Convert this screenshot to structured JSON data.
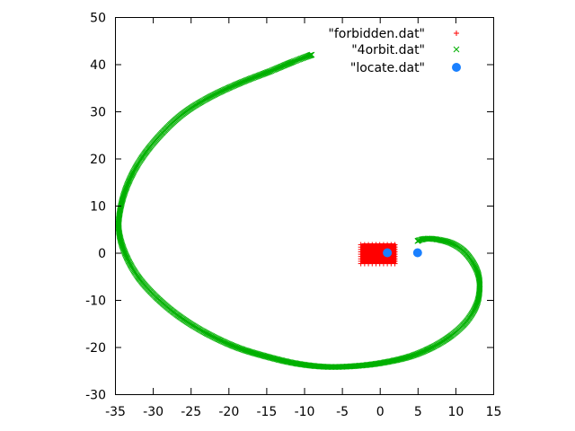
{
  "chart_data": {
    "type": "scatter",
    "title": "",
    "xlabel": "",
    "ylabel": "",
    "xlim": [
      -35,
      15
    ],
    "ylim": [
      -30,
      50
    ],
    "xticks": [
      "-35",
      "-30",
      "-25",
      "-20",
      "-15",
      "-10",
      "-5",
      "0",
      "5",
      "10",
      "15"
    ],
    "yticks": [
      "-30",
      "-20",
      "-10",
      "0",
      "10",
      "20",
      "30",
      "40",
      "50"
    ],
    "grid": false,
    "legend_position": "top-right",
    "series": [
      {
        "name": "\"forbidden.dat\"",
        "marker": "plus",
        "color": "#ff0000",
        "region": {
          "x": [
            -2.5,
            2.2
          ],
          "y": [
            -2.3,
            2.0
          ]
        }
      },
      {
        "name": "\"4orbit.dat\"",
        "marker": "cross",
        "color": "#00b000",
        "points": [
          [
            5.0,
            2.5
          ],
          [
            5.5,
            2.8
          ],
          [
            6.5,
            3.0
          ],
          [
            8.0,
            2.7
          ],
          [
            9.5,
            2.0
          ],
          [
            11.0,
            0.5
          ],
          [
            12.2,
            -1.8
          ],
          [
            13.0,
            -4.5
          ],
          [
            13.2,
            -7.5
          ],
          [
            12.8,
            -11.0
          ],
          [
            11.5,
            -14.5
          ],
          [
            9.5,
            -17.5
          ],
          [
            7.0,
            -20.0
          ],
          [
            4.0,
            -22.0
          ],
          [
            0.5,
            -23.3
          ],
          [
            -3.0,
            -24.0
          ],
          [
            -7.0,
            -24.2
          ],
          [
            -11.0,
            -23.5
          ],
          [
            -15.0,
            -22.0
          ],
          [
            -19.0,
            -20.0
          ],
          [
            -23.0,
            -17.0
          ],
          [
            -26.5,
            -13.5
          ],
          [
            -29.5,
            -9.5
          ],
          [
            -32.0,
            -5.0
          ],
          [
            -33.7,
            0.0
          ],
          [
            -34.5,
            5.0
          ],
          [
            -34.2,
            10.0
          ],
          [
            -33.2,
            15.0
          ],
          [
            -31.5,
            20.0
          ],
          [
            -29.0,
            25.0
          ],
          [
            -26.0,
            29.5
          ],
          [
            -22.5,
            33.0
          ],
          [
            -18.5,
            36.0
          ],
          [
            -14.5,
            38.5
          ],
          [
            -11.5,
            40.5
          ],
          [
            -9.0,
            42.0
          ]
        ]
      },
      {
        "name": "\"locate.dat\"",
        "marker": "filled-circle",
        "color": "#1a80ff",
        "points": [
          [
            1.0,
            0.0
          ],
          [
            5.0,
            0.0
          ]
        ]
      }
    ]
  }
}
